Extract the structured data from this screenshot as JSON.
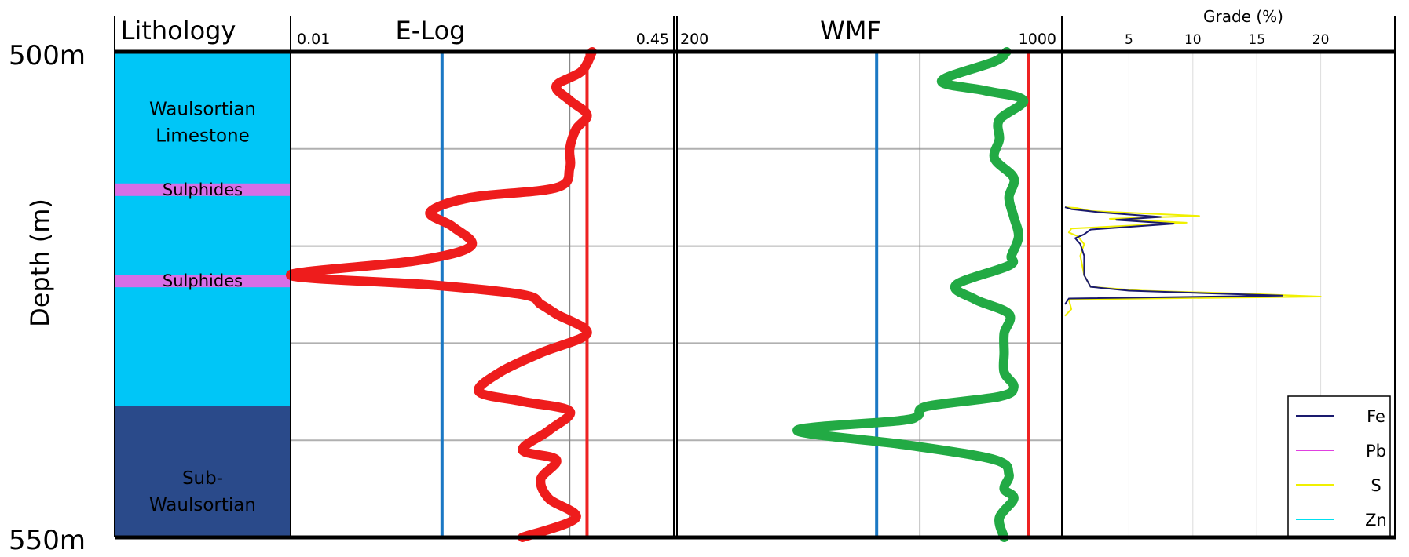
{
  "chart_data": {
    "type": "line",
    "ylabel": "Depth (m)",
    "ylim": [
      500,
      550
    ],
    "depth_labels": [
      "500m",
      "550m"
    ],
    "gridlines_depth": [
      510,
      520,
      530,
      540
    ],
    "panels": [
      {
        "id": "lithology",
        "header": "Lithology",
        "colors": {
          "limestone": "#00c6f7",
          "sub": "#2a4a8a",
          "sulphide": "#d66ee6"
        },
        "units": [
          {
            "label": "Waulsortian\nLimestone",
            "top": 500,
            "bottom": 536.5,
            "label_depth": 506.5
          },
          {
            "label": "Sub-\nWaulsortian",
            "top": 536.5,
            "bottom": 550,
            "label_depth": 544.5
          }
        ],
        "bands": [
          {
            "label": "Sulphides",
            "depth": 514.2
          },
          {
            "label": "Sulphides",
            "depth": 523.6
          }
        ]
      },
      {
        "id": "elog",
        "header": "E-Log",
        "scale": "log",
        "xlim": [
          0.01,
          0.45
        ],
        "min_label": "0.01",
        "max_label": "0.45",
        "cutoffs": [
          {
            "value": 0.045,
            "color": "#1b78c4"
          },
          {
            "value": 0.19,
            "color": "#ee2222"
          }
        ],
        "reference_lines": [
          0.16
        ],
        "series": [
          {
            "color": "#ee1c1c",
            "x": [
              0.2,
              0.18,
              0.14,
              0.16,
              0.19,
              0.17,
              0.16,
              0.16,
              0.14,
              0.06,
              0.04,
              0.05,
              0.06,
              0.035,
              0.01,
              0.04,
              0.1,
              0.12,
              0.14,
              0.19,
              0.12,
              0.08,
              0.065,
              0.1,
              0.16,
              0.13,
              0.1,
              0.14,
              0.12,
              0.13,
              0.17,
              0.1
            ],
            "depth": [
              500,
              502,
              503.5,
              505,
              506.5,
              508,
              510,
              512,
              514,
              515,
              516.5,
              518,
              520,
              521.5,
              523,
              524,
              525,
              526,
              527,
              529,
              531,
              533,
              535,
              536,
              537,
              539,
              541,
              542,
              544,
              546,
              548,
              550
            ]
          }
        ]
      },
      {
        "id": "wmf",
        "header": "WMF",
        "scale": "linear",
        "xlim": [
          200,
          1000
        ],
        "min_label": "200",
        "max_label": "1000",
        "cutoffs": [
          {
            "value": 615,
            "color": "#1b78c4"
          },
          {
            "value": 930,
            "color": "#ee2222"
          }
        ],
        "reference_lines": [
          705
        ],
        "series": [
          {
            "color": "#22aa44",
            "x": [
              885,
              860,
              750,
              840,
              920,
              870,
              870,
              860,
              900,
              890,
              900,
              910,
              895,
              890,
              780,
              820,
              890,
              880,
              880,
              880,
              900,
              870,
              720,
              700,
              660,
              450,
              680,
              860,
              890,
              880,
              900,
              870,
              880
            ],
            "depth": [
              500,
              501,
              503,
              504,
              505,
              507,
              509,
              511,
              513,
              515,
              517,
              519,
              521,
              522,
              524,
              525.5,
              527,
              529,
              531,
              533,
              534.5,
              535.5,
              536.5,
              537.5,
              538,
              539,
              540.5,
              542,
              543.5,
              545,
              546,
              548,
              550
            ]
          }
        ]
      },
      {
        "id": "grade",
        "header": "Grade (%)",
        "scale": "linear",
        "xlim": [
          0,
          25
        ],
        "ticks": [
          5,
          10,
          15,
          20
        ],
        "legend_position": "bottom-right",
        "series": [
          {
            "name": "Fe",
            "color": "#1a1a6e",
            "x": [
              0.0,
              0.5,
              2.5,
              7.5,
              4.0,
              8.5,
              2.0,
              1.5,
              0.8,
              1.2,
              1.5,
              1.5,
              2.0,
              5.0,
              12.0,
              17.0,
              0.3,
              0.0
            ],
            "depth": [
              516,
              516.2,
              516.5,
              517,
              517.3,
              517.7,
              518.3,
              518.8,
              519.2,
              519.8,
              521,
              523,
              524.2,
              524.6,
              524.9,
              525.1,
              525.4,
              526
            ]
          },
          {
            "name": "Pb",
            "color": "#e040e0",
            "x": [],
            "depth": []
          },
          {
            "name": "S",
            "color": "#f0f000",
            "x": [
              0.0,
              1.0,
              2.0,
              10.5,
              3.5,
              9.5,
              0.5,
              0.3,
              1.0,
              1.5,
              1.2,
              1.5,
              2.0,
              6.0,
              14.0,
              20.0,
              0.3,
              0.5,
              0.0
            ],
            "depth": [
              516,
              516.1,
              516.4,
              516.9,
              517.2,
              517.6,
              518.2,
              518.6,
              519,
              519.8,
              521,
              523,
              524.2,
              524.6,
              524.9,
              525.2,
              525.5,
              526.5,
              527.2
            ]
          },
          {
            "name": "Zn",
            "color": "#00e0f0",
            "x": [],
            "depth": []
          }
        ]
      }
    ]
  }
}
